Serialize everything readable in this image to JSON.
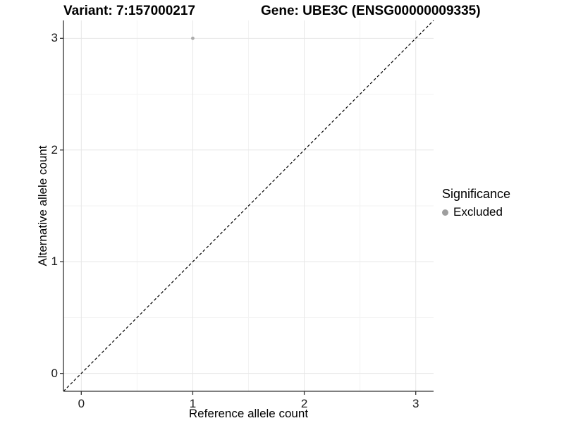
{
  "titles": {
    "variant": "Variant: 7:157000217",
    "gene": "Gene: UBE3C (ENSG00000009335)"
  },
  "axes": {
    "x": {
      "label": "Reference allele count"
    },
    "y": {
      "label": "Alternative allele count"
    }
  },
  "legend": {
    "title": "Significance",
    "items": [
      {
        "label": "Excluded",
        "color": "#9E9E9E"
      }
    ]
  },
  "chart_data": {
    "type": "scatter",
    "title": "Variant: 7:157000217  |  Gene: UBE3C (ENSG00000009335)",
    "xlabel": "Reference allele count",
    "ylabel": "Alternative allele count",
    "xlim": [
      -0.16,
      3.16
    ],
    "ylim": [
      -0.16,
      3.16
    ],
    "x_ticks": {
      "values": [
        0,
        1,
        2,
        3
      ],
      "labels": [
        "0",
        "1",
        "2",
        "3"
      ]
    },
    "y_ticks": {
      "values": [
        0,
        1,
        2,
        3
      ],
      "labels": [
        "0",
        "1",
        "2",
        "3"
      ]
    },
    "minor_ticks": [
      0.5,
      1.5,
      2.5
    ],
    "series": [
      {
        "name": "Excluded",
        "color": "#ABABAB",
        "points": [
          {
            "x": 1,
            "y": 3
          }
        ]
      }
    ],
    "reference_line": {
      "type": "identity y=x",
      "style": "dashed",
      "color": "#000000"
    },
    "grid": "major+minor",
    "legend_position": "right"
  },
  "colors": {
    "background": "#FFFFFF",
    "grid_major": "#E6E6E6",
    "grid_minor": "#F3F3F3",
    "axis_line": "#333333",
    "tick_text": "#1a1a1a",
    "point": "#ABABAB",
    "legend_dot": "#9E9E9E"
  }
}
